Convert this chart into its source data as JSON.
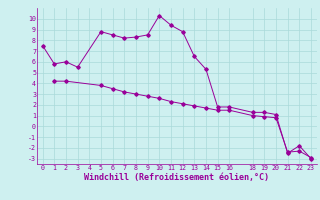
{
  "line1_x": [
    0,
    1,
    2,
    3,
    5,
    6,
    7,
    8,
    9,
    10,
    11,
    12,
    13,
    14,
    15,
    16,
    18,
    19,
    20,
    21,
    22,
    23
  ],
  "line1_y": [
    7.5,
    5.8,
    6.0,
    5.5,
    8.8,
    8.5,
    8.2,
    8.3,
    8.5,
    10.3,
    9.4,
    8.8,
    6.5,
    5.3,
    1.8,
    1.8,
    1.3,
    1.3,
    1.1,
    -2.5,
    -1.8,
    -3.0
  ],
  "line2_x": [
    1,
    2,
    5,
    6,
    7,
    8,
    9,
    10,
    11,
    12,
    13,
    14,
    15,
    16,
    18,
    19,
    20,
    21,
    22,
    23
  ],
  "line2_y": [
    4.2,
    4.2,
    3.8,
    3.5,
    3.2,
    3.0,
    2.8,
    2.6,
    2.3,
    2.1,
    1.9,
    1.7,
    1.5,
    1.5,
    1.0,
    0.9,
    0.8,
    -2.4,
    -2.3,
    -2.9
  ],
  "xlim": [
    -0.5,
    23.5
  ],
  "ylim": [
    -3.5,
    11.0
  ],
  "xticks": [
    0,
    1,
    2,
    3,
    4,
    5,
    6,
    7,
    8,
    9,
    10,
    11,
    12,
    13,
    14,
    15,
    16,
    18,
    19,
    20,
    21,
    22,
    23
  ],
  "yticks": [
    -3,
    -2,
    -1,
    0,
    1,
    2,
    3,
    4,
    5,
    6,
    7,
    8,
    9,
    10
  ],
  "xlabel": "Windchill (Refroidissement éolien,°C)",
  "line_color": "#990099",
  "bg_color": "#cef0f0",
  "grid_color": "#aadada",
  "tick_fontsize": 4.8,
  "label_fontsize": 6.0
}
